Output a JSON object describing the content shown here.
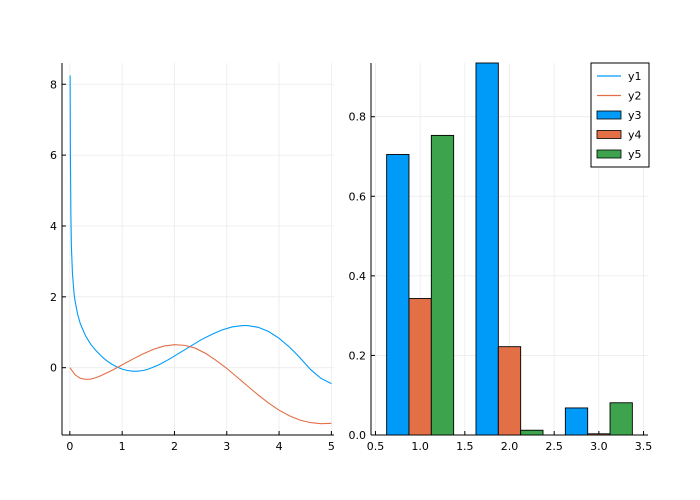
{
  "colors": {
    "y1": "#009AF9",
    "y2": "#E26F46",
    "y3": "#009AF9",
    "y4": "#E26F46",
    "y5": "#3DA44D",
    "grid": "#ebebeb",
    "axis": "#000000"
  },
  "chart_data": [
    {
      "type": "line",
      "title": "",
      "xlabel": "",
      "ylabel": "",
      "xlim": [
        -0.15,
        5.05
      ],
      "ylim": [
        -1.9,
        8.6
      ],
      "xticks": [
        0,
        1,
        2,
        3,
        4,
        5
      ],
      "xtick_labels": [
        "0",
        "1",
        "2",
        "3",
        "4",
        "5"
      ],
      "yticks": [
        0,
        2,
        4,
        6,
        8
      ],
      "ytick_labels": [
        "0",
        "2",
        "4",
        "6",
        "8"
      ],
      "grid": true,
      "series": [
        {
          "name": "y1",
          "x": [
            0.005,
            0.01,
            0.02,
            0.03,
            0.05,
            0.08,
            0.1,
            0.15,
            0.2,
            0.3,
            0.4,
            0.5,
            0.6,
            0.7,
            0.8,
            0.9,
            1.0,
            1.1,
            1.2,
            1.3,
            1.4,
            1.5,
            1.7,
            1.9,
            2.1,
            2.3,
            2.5,
            2.7,
            2.9,
            3.1,
            3.3,
            3.4,
            3.6,
            3.8,
            4.0,
            4.2,
            4.4,
            4.6,
            4.8,
            5.0
          ],
          "y": [
            8.25,
            6.2,
            4.3,
            3.4,
            2.65,
            2.1,
            1.88,
            1.5,
            1.24,
            0.9,
            0.66,
            0.48,
            0.33,
            0.2,
            0.1,
            0.02,
            -0.04,
            -0.08,
            -0.1,
            -0.1,
            -0.08,
            -0.04,
            0.08,
            0.24,
            0.42,
            0.6,
            0.78,
            0.93,
            1.06,
            1.15,
            1.19,
            1.19,
            1.14,
            1.02,
            0.83,
            0.58,
            0.28,
            -0.05,
            -0.3,
            -0.45
          ]
        },
        {
          "name": "y2",
          "x": [
            0.0,
            0.1,
            0.2,
            0.3,
            0.4,
            0.5,
            0.6,
            0.8,
            1.0,
            1.2,
            1.4,
            1.6,
            1.8,
            2.0,
            2.2,
            2.4,
            2.6,
            2.8,
            3.0,
            3.2,
            3.4,
            3.6,
            3.8,
            4.0,
            4.2,
            4.4,
            4.6,
            4.8,
            5.0
          ],
          "y": [
            0.0,
            -0.2,
            -0.3,
            -0.33,
            -0.32,
            -0.28,
            -0.22,
            -0.08,
            0.08,
            0.24,
            0.39,
            0.52,
            0.61,
            0.65,
            0.63,
            0.55,
            0.4,
            0.2,
            -0.02,
            -0.27,
            -0.52,
            -0.77,
            -1.0,
            -1.2,
            -1.36,
            -1.48,
            -1.55,
            -1.58,
            -1.57
          ]
        }
      ]
    },
    {
      "type": "bar",
      "title": "",
      "xlabel": "",
      "ylabel": "",
      "xlim": [
        0.45,
        3.55
      ],
      "ylim": [
        0,
        0.935
      ],
      "xticks": [
        0.5,
        1.0,
        1.5,
        2.0,
        2.5,
        3.0,
        3.5
      ],
      "xtick_labels": [
        "0.5",
        "1.0",
        "1.5",
        "2.0",
        "2.5",
        "3.0",
        "3.5"
      ],
      "yticks": [
        0.0,
        0.2,
        0.4,
        0.6,
        0.8
      ],
      "ytick_labels": [
        "0.0",
        "0.2",
        "0.4",
        "0.6",
        "0.8"
      ],
      "grid": true,
      "legend_position": "top-right",
      "bar_width": 0.25,
      "series": [
        {
          "name": "y3",
          "x": [
            0.75,
            1.75,
            2.75
          ],
          "values": [
            0.705,
            0.935,
            0.068
          ]
        },
        {
          "name": "y4",
          "x": [
            1.0,
            2.0,
            3.0
          ],
          "values": [
            0.343,
            0.222,
            0.003
          ]
        },
        {
          "name": "y5",
          "x": [
            1.25,
            2.25,
            3.25
          ],
          "values": [
            0.753,
            0.012,
            0.081
          ]
        }
      ]
    }
  ],
  "legend": {
    "entries": [
      {
        "label": "y1",
        "kind": "line",
        "color": "#009AF9"
      },
      {
        "label": "y2",
        "kind": "line",
        "color": "#E26F46"
      },
      {
        "label": "y3",
        "kind": "bar",
        "color": "#009AF9"
      },
      {
        "label": "y4",
        "kind": "bar",
        "color": "#E26F46"
      },
      {
        "label": "y5",
        "kind": "bar",
        "color": "#3DA44D"
      }
    ]
  }
}
